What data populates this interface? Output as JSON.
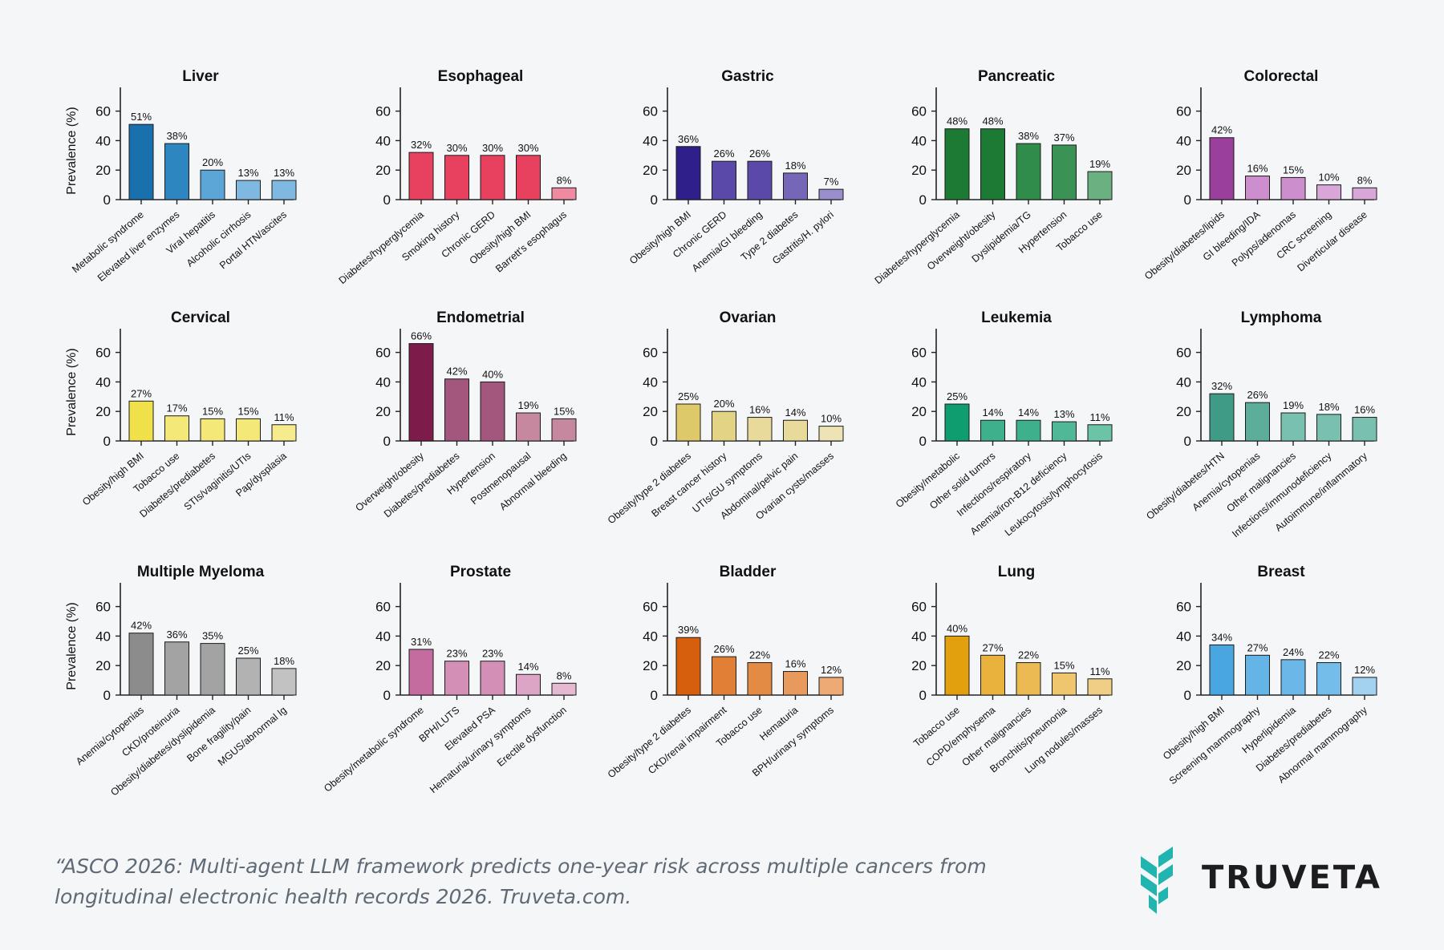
{
  "chart_data": [
    {
      "type": "bar",
      "title": "Liver",
      "ylabel": "Prevalence (%)",
      "ylim": [
        0,
        75
      ],
      "yticks": [
        0,
        20,
        40,
        60
      ],
      "categories": [
        "Metabolic syndrome",
        "Elevated liver enzymes",
        "Viral hepatitis",
        "Alcoholic cirrhosis",
        "Portal HTN/ascites"
      ],
      "values": [
        51,
        38,
        20,
        13,
        13
      ],
      "labels": [
        "51%",
        "38%",
        "20%",
        "13%",
        "13%"
      ],
      "colors": [
        "#1a6fad",
        "#2e86c1",
        "#5ba6d6",
        "#7fb8e0",
        "#7fb8e0"
      ]
    },
    {
      "type": "bar",
      "title": "Esophageal",
      "ylabel": "",
      "ylim": [
        0,
        75
      ],
      "yticks": [
        0,
        20,
        40,
        60
      ],
      "categories": [
        "Diabetes/hyperglycemia",
        "Smoking history",
        "Chronic GERD",
        "Obesity/high BMI",
        "Barrett's esophagus"
      ],
      "values": [
        32,
        30,
        30,
        30,
        8
      ],
      "labels": [
        "32%",
        "30%",
        "30%",
        "30%",
        "8%"
      ],
      "colors": [
        "#e8405f",
        "#e8405f",
        "#e8405f",
        "#e8405f",
        "#f08aa0"
      ]
    },
    {
      "type": "bar",
      "title": "Gastric",
      "ylabel": "",
      "ylim": [
        0,
        75
      ],
      "yticks": [
        0,
        20,
        40,
        60
      ],
      "categories": [
        "Obesity/high BMI",
        "Chronic GERD",
        "Anemia/GI bleeding",
        "Type 2 diabetes",
        "Gastritis/H. pylori"
      ],
      "values": [
        36,
        26,
        26,
        18,
        7
      ],
      "labels": [
        "36%",
        "26%",
        "26%",
        "18%",
        "7%"
      ],
      "colors": [
        "#2e1f8a",
        "#5a49a8",
        "#5a49a8",
        "#7566b8",
        "#9a8fcc"
      ]
    },
    {
      "type": "bar",
      "title": "Pancreatic",
      "ylabel": "",
      "ylim": [
        0,
        75
      ],
      "yticks": [
        0,
        20,
        40,
        60
      ],
      "categories": [
        "Diabetes/hyperglycemia",
        "Overweight/obesity",
        "Dyslipidemia/TG",
        "Hypertension",
        "Tobacco use"
      ],
      "values": [
        48,
        48,
        38,
        37,
        19
      ],
      "labels": [
        "48%",
        "48%",
        "38%",
        "37%",
        "19%"
      ],
      "colors": [
        "#1d7a35",
        "#1d7a35",
        "#2f8c4a",
        "#3a9255",
        "#6bb080"
      ]
    },
    {
      "type": "bar",
      "title": "Colorectal",
      "ylabel": "",
      "ylim": [
        0,
        75
      ],
      "yticks": [
        0,
        20,
        40,
        60
      ],
      "categories": [
        "Obesity/diabetes/lipids",
        "GI bleeding/IDA",
        "Polyps/adenomas",
        "CRC screening",
        "Diverticular disease"
      ],
      "values": [
        42,
        16,
        15,
        10,
        8
      ],
      "labels": [
        "42%",
        "16%",
        "15%",
        "10%",
        "8%"
      ],
      "colors": [
        "#9b3f9c",
        "#cc8ecc",
        "#cc8ecc",
        "#d9a6d9",
        "#d9a6d9"
      ]
    },
    {
      "type": "bar",
      "title": "Cervical",
      "ylabel": "Prevalence (%)",
      "ylim": [
        0,
        75
      ],
      "yticks": [
        0,
        20,
        40,
        60
      ],
      "categories": [
        "Obesity/high BMI",
        "Tobacco use",
        "Diabetes/prediabetes",
        "STIs/vaginitis/UTIs",
        "Pap/dysplasia"
      ],
      "values": [
        27,
        17,
        15,
        15,
        11
      ],
      "labels": [
        "27%",
        "17%",
        "15%",
        "15%",
        "11%"
      ],
      "colors": [
        "#f0e14a",
        "#f4e878",
        "#f4e878",
        "#f4e878",
        "#f6ec8e"
      ]
    },
    {
      "type": "bar",
      "title": "Endometrial",
      "ylabel": "",
      "ylim": [
        0,
        75
      ],
      "yticks": [
        0,
        20,
        40,
        60
      ],
      "categories": [
        "Overweight/obesity",
        "Diabetes/prediabetes",
        "Hypertension",
        "Postmenopausal",
        "Abnormal bleeding"
      ],
      "values": [
        66,
        42,
        40,
        19,
        15
      ],
      "labels": [
        "66%",
        "42%",
        "40%",
        "19%",
        "15%"
      ],
      "colors": [
        "#7d1c4a",
        "#a3577c",
        "#a3577c",
        "#c5889f",
        "#c5889f"
      ]
    },
    {
      "type": "bar",
      "title": "Ovarian",
      "ylabel": "",
      "ylim": [
        0,
        75
      ],
      "yticks": [
        0,
        20,
        40,
        60
      ],
      "categories": [
        "Obesity/type 2 diabetes",
        "Breast cancer history",
        "UTIs/GU symptoms",
        "Abdominal/pelvic pain",
        "Ovarian cysts/masses"
      ],
      "values": [
        25,
        20,
        16,
        14,
        10
      ],
      "labels": [
        "25%",
        "20%",
        "16%",
        "14%",
        "10%"
      ],
      "colors": [
        "#ddc96a",
        "#e3d385",
        "#e8da9b",
        "#e8da9b",
        "#eee3b4"
      ]
    },
    {
      "type": "bar",
      "title": "Leukemia",
      "ylabel": "",
      "ylim": [
        0,
        75
      ],
      "yticks": [
        0,
        20,
        40,
        60
      ],
      "categories": [
        "Obesity/metabolic",
        "Other solid tumors",
        "Infections/respiratory",
        "Anemia/iron-B12 deficiency",
        "Leukocytosis/lymphocytosis"
      ],
      "values": [
        25,
        14,
        14,
        13,
        11
      ],
      "labels": [
        "25%",
        "14%",
        "14%",
        "13%",
        "11%"
      ],
      "colors": [
        "#0f9c6e",
        "#3fb08c",
        "#3fb08c",
        "#50b896",
        "#6cc4a6"
      ]
    },
    {
      "type": "bar",
      "title": "Lymphoma",
      "ylabel": "",
      "ylim": [
        0,
        75
      ],
      "yticks": [
        0,
        20,
        40,
        60
      ],
      "categories": [
        "Obesity/diabetes/HTN",
        "Anemia/cytopenias",
        "Other malignancies",
        "Infections/immunodeficiency",
        "Autoimmune/inflammatory"
      ],
      "values": [
        32,
        26,
        19,
        18,
        16
      ],
      "labels": [
        "32%",
        "26%",
        "19%",
        "18%",
        "16%"
      ],
      "colors": [
        "#3f9a86",
        "#5cae9b",
        "#79c0b0",
        "#79c0b0",
        "#79c0b0"
      ]
    },
    {
      "type": "bar",
      "title": "Multiple Myeloma",
      "ylabel": "Prevalence (%)",
      "ylim": [
        0,
        75
      ],
      "yticks": [
        0,
        20,
        40,
        60
      ],
      "categories": [
        "Anemia/cytopenias",
        "CKD/proteinuria",
        "Obesity/diabetes/dyslipidemia",
        "Bone fragility/pain",
        "MGUS/abnormal Ig"
      ],
      "values": [
        42,
        36,
        35,
        25,
        18
      ],
      "labels": [
        "42%",
        "36%",
        "35%",
        "25%",
        "18%"
      ],
      "colors": [
        "#8c8c8c",
        "#a3a3a3",
        "#a3a3a3",
        "#b2b2b2",
        "#c2c2c2"
      ]
    },
    {
      "type": "bar",
      "title": "Prostate",
      "ylabel": "",
      "ylim": [
        0,
        75
      ],
      "yticks": [
        0,
        20,
        40,
        60
      ],
      "categories": [
        "Obesity/metabolic syndrome",
        "BPH/LUTS",
        "Elevated PSA",
        "Hematuria/urinary symptoms",
        "Erectile dysfunction"
      ],
      "values": [
        31,
        23,
        23,
        14,
        8
      ],
      "labels": [
        "31%",
        "23%",
        "23%",
        "14%",
        "8%"
      ],
      "colors": [
        "#c46ba0",
        "#d38fb6",
        "#d38fb6",
        "#dca5c5",
        "#e6b9d2"
      ]
    },
    {
      "type": "bar",
      "title": "Bladder",
      "ylabel": "",
      "ylim": [
        0,
        75
      ],
      "yticks": [
        0,
        20,
        40,
        60
      ],
      "categories": [
        "Obesity/type 2 diabetes",
        "CKD/renal impairment",
        "Tobacco use",
        "Hematuria",
        "BPH/urinary symptoms"
      ],
      "values": [
        39,
        26,
        22,
        16,
        12
      ],
      "labels": [
        "39%",
        "26%",
        "22%",
        "16%",
        "12%"
      ],
      "colors": [
        "#d65f0e",
        "#e07f35",
        "#e38a45",
        "#e89a5c",
        "#eeaa74"
      ]
    },
    {
      "type": "bar",
      "title": "Lung",
      "ylabel": "",
      "ylim": [
        0,
        75
      ],
      "yticks": [
        0,
        20,
        40,
        60
      ],
      "categories": [
        "Tobacco use",
        "COPD/emphysema",
        "Other malignancies",
        "Bronchitis/pneumonia",
        "Lung nodules/masses"
      ],
      "values": [
        40,
        27,
        22,
        15,
        11
      ],
      "labels": [
        "40%",
        "27%",
        "22%",
        "15%",
        "11%"
      ],
      "colors": [
        "#e2a00e",
        "#e8b23c",
        "#ebba52",
        "#efc66e",
        "#f1ce85"
      ]
    },
    {
      "type": "bar",
      "title": "Breast",
      "ylabel": "",
      "ylim": [
        0,
        75
      ],
      "yticks": [
        0,
        20,
        40,
        60
      ],
      "categories": [
        "Obesity/high BMI",
        "Screening mammography",
        "Hyperlipidemia",
        "Diabetes/prediabetes",
        "Abnormal mammography"
      ],
      "values": [
        34,
        27,
        24,
        22,
        12
      ],
      "labels": [
        "34%",
        "27%",
        "24%",
        "22%",
        "12%"
      ],
      "colors": [
        "#4aa6e0",
        "#64b4e6",
        "#6bb8e8",
        "#74bdea",
        "#a3d2f0"
      ]
    }
  ],
  "caption": "“ASCO 2026: Multi-agent LLM framework predicts one-year risk across multiple cancers from longitudinal electronic health records 2026. Truveta.com.",
  "logo": {
    "text": "TRUVETA",
    "color": "#22b5b0"
  }
}
